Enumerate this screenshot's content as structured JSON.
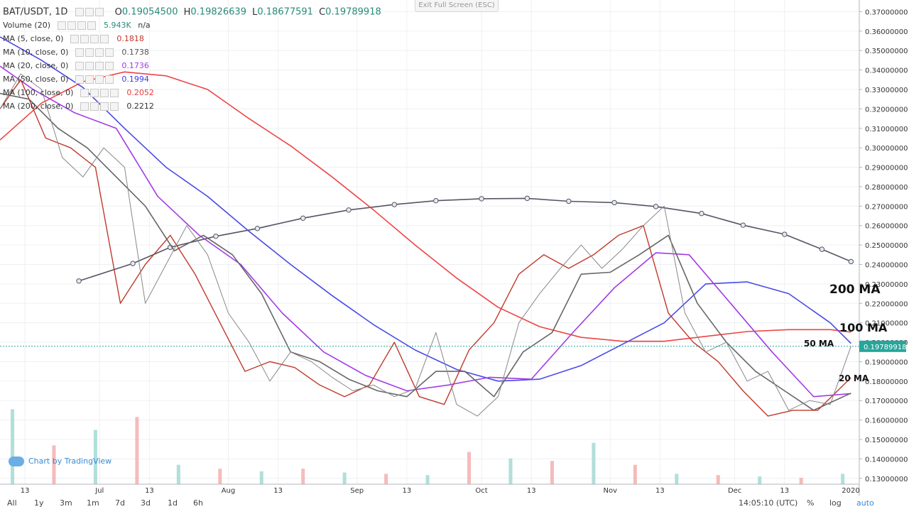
{
  "header": {
    "symbol": "BAT/USDT, 1D",
    "open_label": "O",
    "open": "0.19054500",
    "high_label": "H",
    "high": "0.19826639",
    "low_label": "L",
    "low": "0.18677591",
    "close_label": "C",
    "close": "0.19789918",
    "exit_fullscreen": "Exit Full Screen (ESC)"
  },
  "indicators": [
    {
      "label": "Volume (20)",
      "value": "5.943K",
      "value2": "n/a",
      "color": "#2a8a7a"
    },
    {
      "label": "MA (5, close, 0)",
      "value": "0.1818",
      "color": "#c0392b"
    },
    {
      "label": "MA (10, close, 0)",
      "value": "0.1738",
      "color": "#555555"
    },
    {
      "label": "MA (20, close, 0)",
      "value": "0.1736",
      "color": "#a23be6"
    },
    {
      "label": "MA (50, close, 0)",
      "value": "0.1994",
      "color": "#3b3be6"
    },
    {
      "label": "MA (100, close, 0)",
      "value": "0.2052",
      "color": "#e63b3b"
    },
    {
      "label": "MA (200, close, 0)",
      "value": "0.2212",
      "color": "#333333"
    }
  ],
  "annotations": [
    "200 MA",
    "100 MA",
    "50 MA",
    "20 MA"
  ],
  "price_tag": "0.19789918",
  "branding": "Chart by TradingView",
  "bottom": {
    "timeframes": [
      "All",
      "1y",
      "3m",
      "1m",
      "7d",
      "3d",
      "1d",
      "6h"
    ],
    "clock": "14:05:10 (UTC)",
    "options": [
      "%",
      "log",
      "auto"
    ]
  },
  "colors": {
    "up": "#26a69a",
    "down": "#ef5350",
    "ma5": "#c0392b",
    "ma10": "#666666",
    "ma20": "#a23be6",
    "ma50": "#4a4ae6",
    "ma100": "#ee4444",
    "ma200": "#555566",
    "grid": "#eef0f3",
    "price_line": "#26a69a"
  },
  "chart_data": {
    "type": "line",
    "title": "BAT/USDT, 1D",
    "y_ticks": [
      "0.37000000",
      "0.36000000",
      "0.35000000",
      "0.34000000",
      "0.33000000",
      "0.32000000",
      "0.31000000",
      "0.30000000",
      "0.29000000",
      "0.28000000",
      "0.27000000",
      "0.26000000",
      "0.25000000",
      "0.24000000",
      "0.23000000",
      "0.22000000",
      "0.21000000",
      "0.20000000",
      "0.19000000",
      "0.18000000",
      "0.17000000",
      "0.16000000",
      "0.15000000",
      "0.14000000",
      "0.13000000"
    ],
    "ylim": [
      0.127,
      0.376
    ],
    "x_ticks": [
      "13",
      "Jul",
      "13",
      "Aug",
      "13",
      "Sep",
      "13",
      "Oct",
      "13",
      "Nov",
      "13",
      "Dec",
      "13",
      "2020"
    ],
    "xlim": [
      "2019-06-07",
      "2019-12-31"
    ],
    "last_price": 0.19789918,
    "series": [
      {
        "name": "MA (200, close, 0)",
        "x": [
          "2019-06-26",
          "2019-07-09",
          "2019-07-18",
          "2019-07-29",
          "2019-08-08",
          "2019-08-19",
          "2019-08-30",
          "2019-09-10",
          "2019-09-20",
          "2019-10-01",
          "2019-10-12",
          "2019-10-22",
          "2019-11-02",
          "2019-11-12",
          "2019-11-23",
          "2019-12-03",
          "2019-12-13",
          "2019-12-22",
          "2019-12-29"
        ],
        "values": [
          0.2315,
          0.2405,
          0.2488,
          0.2545,
          0.2585,
          0.2638,
          0.268,
          0.2708,
          0.2728,
          0.2738,
          0.274,
          0.2725,
          0.2718,
          0.2698,
          0.2662,
          0.2602,
          0.2555,
          0.2478,
          0.2415
        ]
      },
      {
        "name": "MA (100, close, 0)",
        "x": [
          "2019-06-07",
          "2019-06-17",
          "2019-06-27",
          "2019-07-07",
          "2019-07-17",
          "2019-07-27",
          "2019-08-06",
          "2019-08-16",
          "2019-08-26",
          "2019-09-05",
          "2019-09-15",
          "2019-09-25",
          "2019-10-05",
          "2019-10-15",
          "2019-10-25",
          "2019-11-04",
          "2019-11-14",
          "2019-11-24",
          "2019-12-04",
          "2019-12-14",
          "2019-12-24",
          "2019-12-29"
        ],
        "values": [
          0.304,
          0.323,
          0.334,
          0.339,
          0.337,
          0.33,
          0.315,
          0.301,
          0.285,
          0.268,
          0.25,
          0.233,
          0.218,
          0.208,
          0.2025,
          0.2005,
          0.2005,
          0.203,
          0.2055,
          0.2065,
          0.2065,
          0.2052
        ]
      },
      {
        "name": "MA (50, close, 0)",
        "x": [
          "2019-06-07",
          "2019-06-17",
          "2019-06-27",
          "2019-07-07",
          "2019-07-17",
          "2019-07-27",
          "2019-08-06",
          "2019-08-16",
          "2019-08-26",
          "2019-09-05",
          "2019-09-15",
          "2019-09-25",
          "2019-10-05",
          "2019-10-15",
          "2019-10-25",
          "2019-11-04",
          "2019-11-14",
          "2019-11-24",
          "2019-12-04",
          "2019-12-14",
          "2019-12-24",
          "2019-12-29"
        ],
        "values": [
          0.357,
          0.345,
          0.331,
          0.31,
          0.29,
          0.275,
          0.257,
          0.24,
          0.224,
          0.209,
          0.196,
          0.186,
          0.18,
          0.181,
          0.188,
          0.199,
          0.21,
          0.23,
          0.231,
          0.225,
          0.21,
          0.1994
        ]
      },
      {
        "name": "MA (20, close, 0)",
        "x": [
          "2019-06-07",
          "2019-06-15",
          "2019-06-25",
          "2019-07-05",
          "2019-07-15",
          "2019-07-25",
          "2019-08-04",
          "2019-08-14",
          "2019-08-24",
          "2019-09-03",
          "2019-09-13",
          "2019-09-23",
          "2019-10-03",
          "2019-10-13",
          "2019-10-23",
          "2019-11-02",
          "2019-11-12",
          "2019-11-20",
          "2019-11-30",
          "2019-12-10",
          "2019-12-20",
          "2019-12-29"
        ],
        "values": [
          0.342,
          0.33,
          0.318,
          0.31,
          0.275,
          0.255,
          0.24,
          0.215,
          0.195,
          0.183,
          0.175,
          0.178,
          0.182,
          0.181,
          0.205,
          0.228,
          0.246,
          0.245,
          0.22,
          0.195,
          0.172,
          0.1736
        ]
      },
      {
        "name": "MA (10, close, 0)",
        "x": [
          "2019-06-07",
          "2019-06-14",
          "2019-06-21",
          "2019-06-28",
          "2019-07-05",
          "2019-07-12",
          "2019-07-19",
          "2019-07-26",
          "2019-08-02",
          "2019-08-09",
          "2019-08-16",
          "2019-08-23",
          "2019-08-30",
          "2019-09-06",
          "2019-09-13",
          "2019-09-20",
          "2019-09-27",
          "2019-10-04",
          "2019-10-11",
          "2019-10-18",
          "2019-10-25",
          "2019-11-01",
          "2019-11-08",
          "2019-11-15",
          "2019-11-22",
          "2019-11-29",
          "2019-12-06",
          "2019-12-13",
          "2019-12-20",
          "2019-12-29"
        ],
        "values": [
          0.328,
          0.325,
          0.31,
          0.3,
          0.285,
          0.27,
          0.247,
          0.255,
          0.245,
          0.225,
          0.195,
          0.19,
          0.181,
          0.175,
          0.172,
          0.185,
          0.185,
          0.172,
          0.195,
          0.205,
          0.235,
          0.236,
          0.245,
          0.255,
          0.22,
          0.2,
          0.185,
          0.175,
          0.165,
          0.1738
        ]
      },
      {
        "name": "MA (5, close, 0)",
        "x": [
          "2019-06-07",
          "2019-06-12",
          "2019-06-18",
          "2019-06-24",
          "2019-06-30",
          "2019-07-06",
          "2019-07-12",
          "2019-07-18",
          "2019-07-24",
          "2019-07-30",
          "2019-08-05",
          "2019-08-11",
          "2019-08-17",
          "2019-08-23",
          "2019-08-29",
          "2019-09-04",
          "2019-09-10",
          "2019-09-16",
          "2019-09-22",
          "2019-09-28",
          "2019-10-04",
          "2019-10-10",
          "2019-10-16",
          "2019-10-22",
          "2019-10-28",
          "2019-11-03",
          "2019-11-09",
          "2019-11-15",
          "2019-11-21",
          "2019-11-27",
          "2019-12-03",
          "2019-12-09",
          "2019-12-15",
          "2019-12-21",
          "2019-12-29"
        ],
        "values": [
          0.32,
          0.335,
          0.305,
          0.3,
          0.29,
          0.22,
          0.24,
          0.255,
          0.235,
          0.21,
          0.185,
          0.19,
          0.187,
          0.178,
          0.172,
          0.178,
          0.2,
          0.172,
          0.168,
          0.196,
          0.21,
          0.235,
          0.245,
          0.238,
          0.245,
          0.255,
          0.26,
          0.215,
          0.2,
          0.19,
          0.175,
          0.162,
          0.165,
          0.165,
          0.1818
        ]
      },
      {
        "name": "Close",
        "x": [
          "2019-06-07",
          "2019-06-12",
          "2019-06-17",
          "2019-06-22",
          "2019-06-27",
          "2019-07-02",
          "2019-07-07",
          "2019-07-12",
          "2019-07-17",
          "2019-07-22",
          "2019-07-27",
          "2019-08-01",
          "2019-08-06",
          "2019-08-11",
          "2019-08-16",
          "2019-08-21",
          "2019-08-26",
          "2019-08-31",
          "2019-09-05",
          "2019-09-10",
          "2019-09-15",
          "2019-09-20",
          "2019-09-25",
          "2019-09-30",
          "2019-10-05",
          "2019-10-10",
          "2019-10-15",
          "2019-10-20",
          "2019-10-25",
          "2019-10-30",
          "2019-11-04",
          "2019-11-09",
          "2019-11-14",
          "2019-11-19",
          "2019-11-24",
          "2019-11-29",
          "2019-12-04",
          "2019-12-09",
          "2019-12-14",
          "2019-12-19",
          "2019-12-24",
          "2019-12-29"
        ],
        "values": [
          0.32,
          0.338,
          0.33,
          0.295,
          0.285,
          0.3,
          0.29,
          0.22,
          0.24,
          0.26,
          0.245,
          0.215,
          0.2,
          0.18,
          0.195,
          0.19,
          0.182,
          0.175,
          0.178,
          0.172,
          0.176,
          0.205,
          0.168,
          0.162,
          0.172,
          0.21,
          0.225,
          0.238,
          0.25,
          0.238,
          0.248,
          0.26,
          0.27,
          0.215,
          0.195,
          0.2,
          0.18,
          0.185,
          0.165,
          0.17,
          0.168,
          0.1979
        ]
      }
    ],
    "volume": {
      "ylim": [
        0,
        10000
      ],
      "x": [
        "2019-06-10",
        "2019-06-20",
        "2019-06-30",
        "2019-07-10",
        "2019-07-20",
        "2019-07-30",
        "2019-08-09",
        "2019-08-19",
        "2019-08-29",
        "2019-09-08",
        "2019-09-18",
        "2019-09-28",
        "2019-10-08",
        "2019-10-18",
        "2019-10-28",
        "2019-11-07",
        "2019-11-17",
        "2019-11-27",
        "2019-12-07",
        "2019-12-17",
        "2019-12-27"
      ],
      "values": [
        5800,
        3000,
        4200,
        5200,
        1500,
        1200,
        1000,
        1200,
        900,
        800,
        700,
        2500,
        2000,
        1800,
        3200,
        1500,
        800,
        700,
        600,
        500,
        800
      ]
    }
  }
}
